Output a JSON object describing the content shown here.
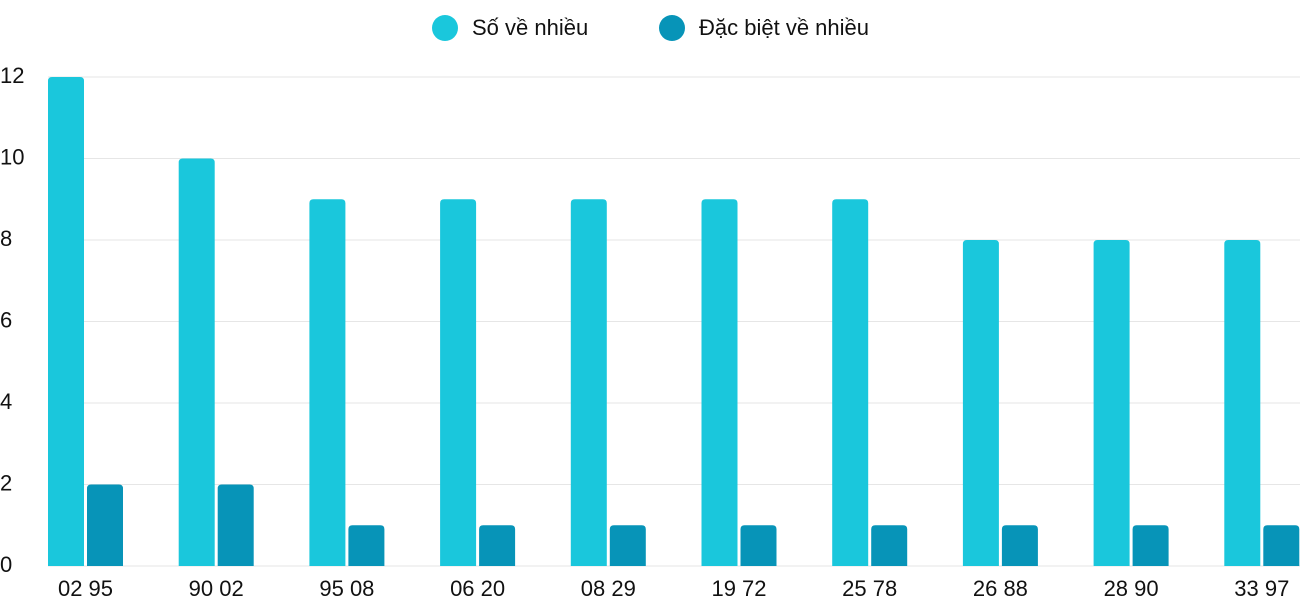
{
  "chart_data": {
    "type": "bar",
    "categories": [
      "02 95",
      "90 02",
      "95 08",
      "06 20",
      "08 29",
      "19 72",
      "25 78",
      "26 88",
      "28 90",
      "33 97"
    ],
    "series": [
      {
        "name": "Số về nhiều",
        "color": "#1ac7dc",
        "values": [
          12,
          10,
          9,
          9,
          9,
          9,
          9,
          8,
          8,
          8
        ]
      },
      {
        "name": "Đặc biệt về nhiều",
        "color": "#0794b8",
        "values": [
          2,
          2,
          1,
          1,
          1,
          1,
          1,
          1,
          1,
          1
        ]
      }
    ],
    "ylim": [
      0,
      12
    ],
    "yticks": [
      0,
      2,
      4,
      6,
      8,
      10,
      12
    ],
    "grid": true
  }
}
